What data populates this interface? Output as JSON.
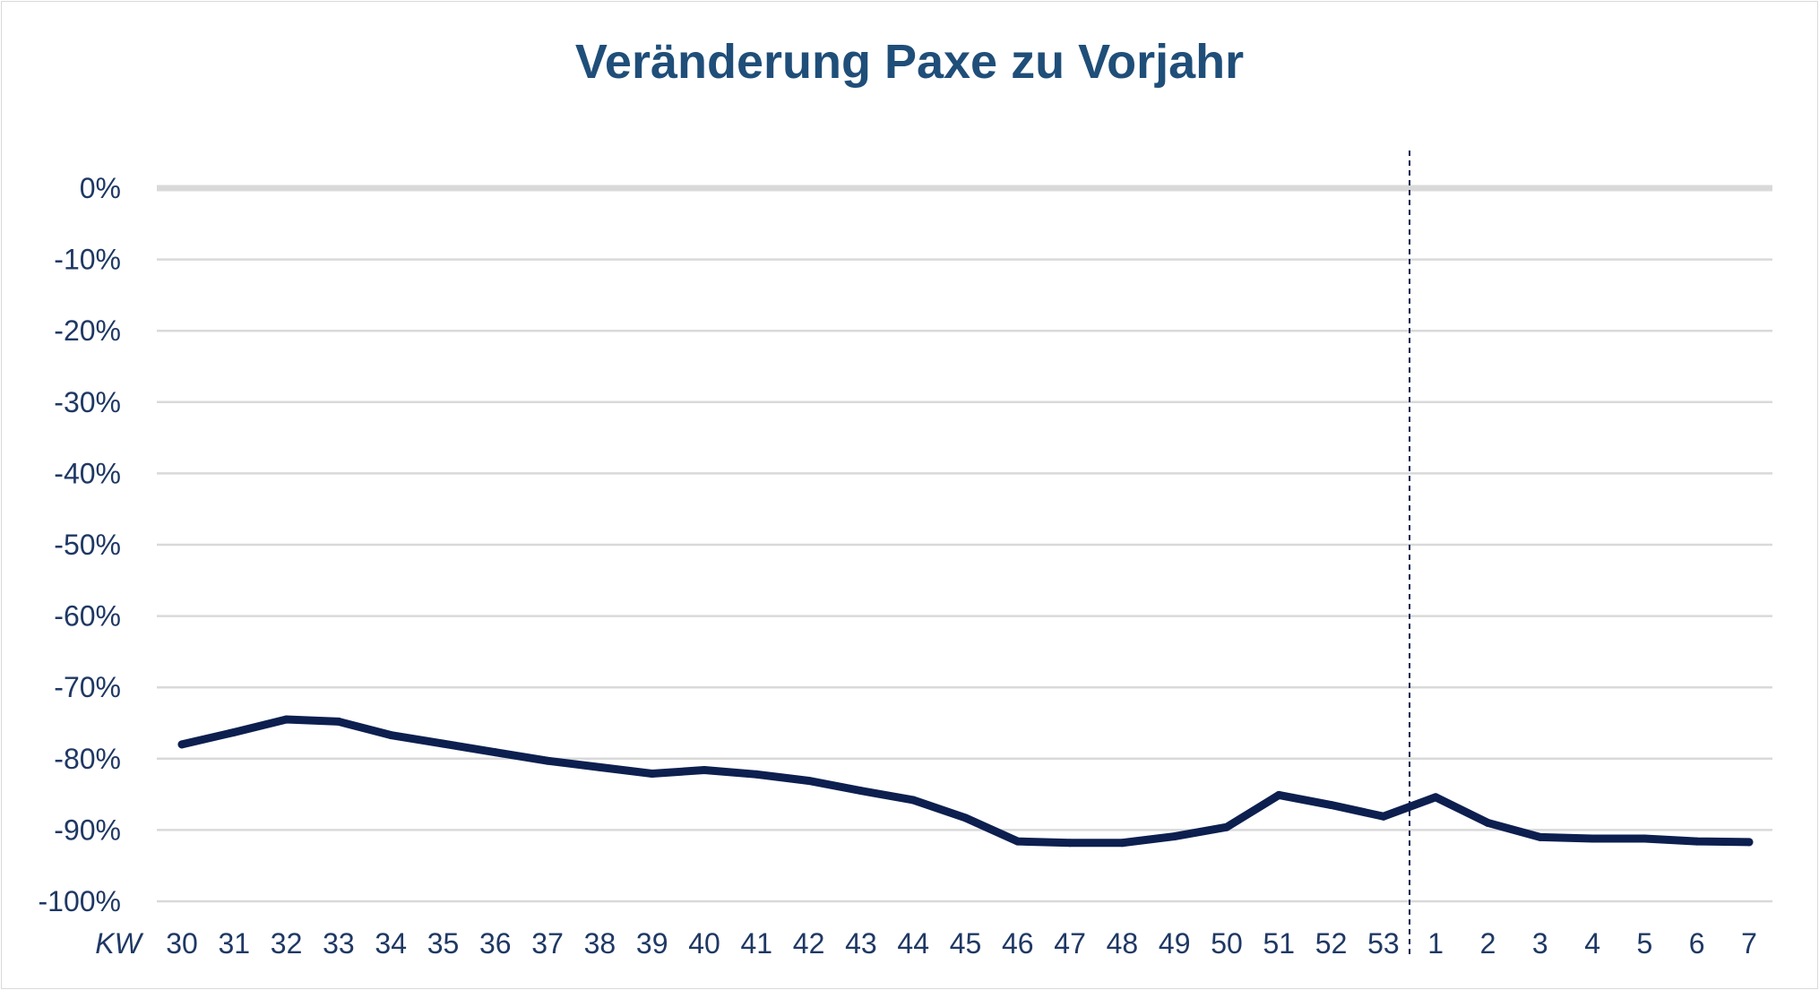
{
  "chart_data": {
    "type": "line",
    "title": "Veränderung Paxe zu Vorjahr",
    "xlabel": "KW",
    "ylabel": "",
    "ylim": [
      -100,
      0
    ],
    "y_ticks": [
      "0%",
      "-10%",
      "-20%",
      "-30%",
      "-40%",
      "-50%",
      "-60%",
      "-70%",
      "-80%",
      "-90%",
      "-100%"
    ],
    "categories": [
      "30",
      "31",
      "32",
      "33",
      "34",
      "35",
      "36",
      "37",
      "38",
      "39",
      "40",
      "41",
      "42",
      "43",
      "44",
      "45",
      "46",
      "47",
      "48",
      "49",
      "50",
      "51",
      "52",
      "53",
      "1",
      "2",
      "3",
      "4",
      "5",
      "6",
      "7"
    ],
    "series": [
      {
        "values": [
          -78,
          -76.3,
          -74.5,
          -74.8,
          -76.7,
          -77.9,
          -79.1,
          -80.3,
          -81.2,
          -82.1,
          -81.6,
          -82.2,
          -83.1,
          -84.5,
          -85.8,
          -88.3,
          -91.6,
          -91.8,
          -91.8,
          -90.9,
          -89.6,
          -85.1,
          -86.5,
          -88.1,
          -85.4,
          -89,
          -91,
          -91.2,
          -91.2,
          -91.6,
          -91.7
        ]
      }
    ],
    "divider_after_category": "53",
    "grid": true,
    "legend": "none",
    "colors": {
      "line": "#0c1f4f",
      "grid": "#d9d9d9",
      "zero_line": "#d9d9d9",
      "text": "#1f3864",
      "title": "#1f4e79"
    }
  }
}
